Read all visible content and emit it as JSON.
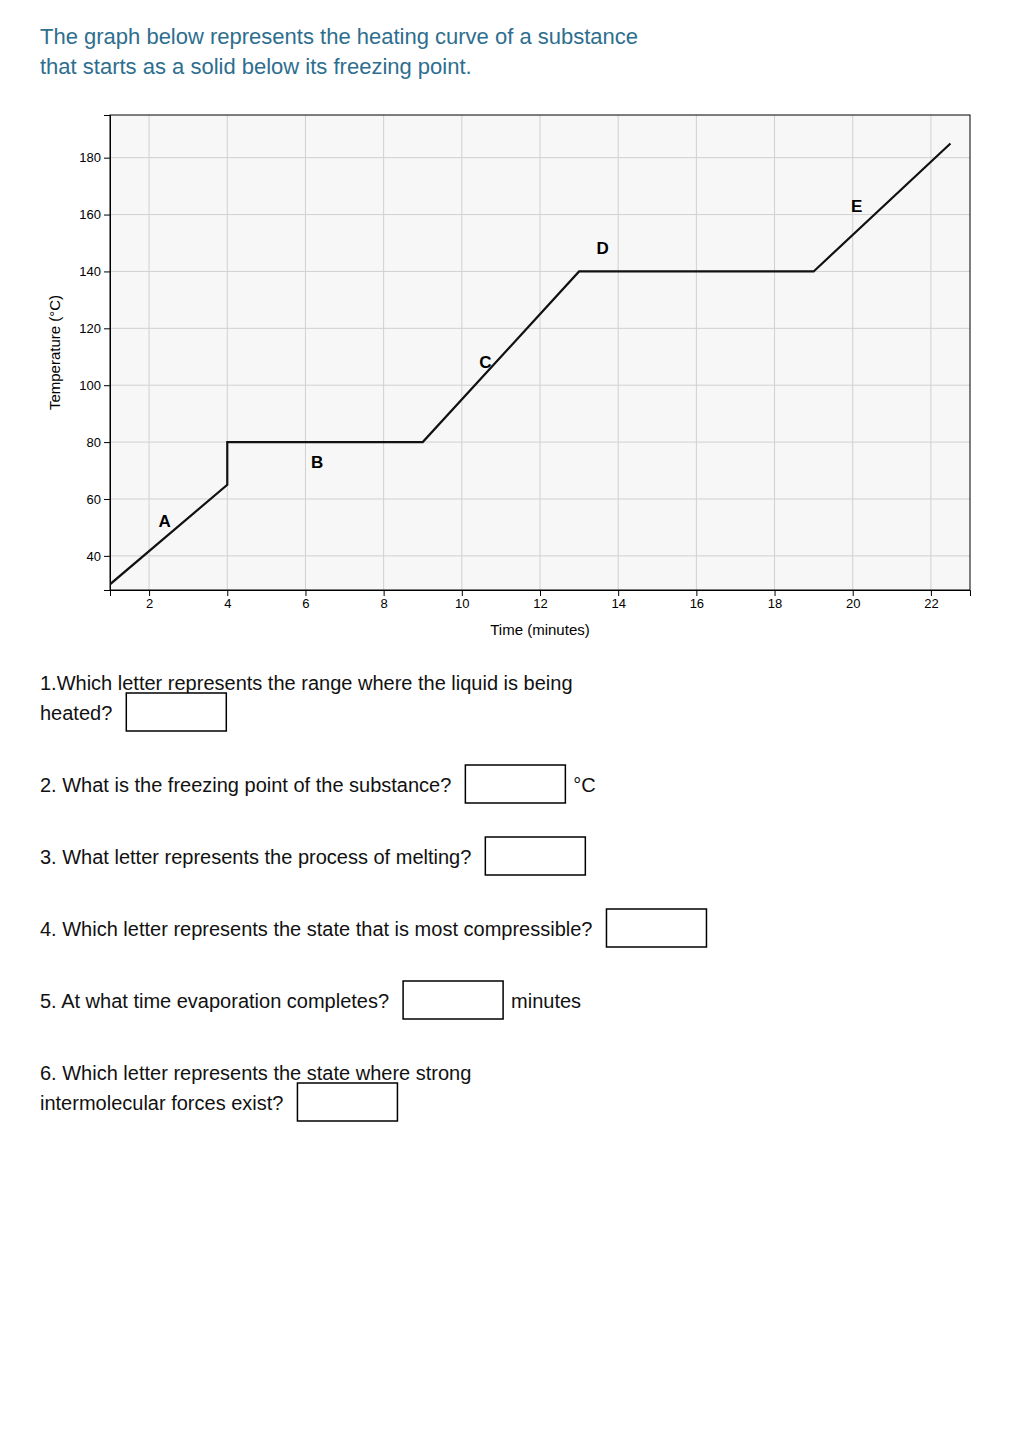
{
  "chart_data": {
    "type": "line",
    "title": "The graph below represents the heating curve of a substance\nthat starts as a solid below its freezing point.",
    "xlabel": "Time (minutes)",
    "ylabel": "Temperature (°C)",
    "x": [
      1,
      4,
      4,
      9,
      9,
      13,
      13,
      19,
      19,
      22.5
    ],
    "values": [
      30,
      65,
      80,
      80,
      80,
      140,
      140,
      140,
      140,
      185
    ],
    "color": "#111111",
    "xlim": [
      1,
      23
    ],
    "ylim": [
      28,
      195
    ],
    "xticks": [
      2,
      4,
      6,
      8,
      10,
      12,
      14,
      16,
      18,
      20,
      22
    ],
    "yticks": [
      40,
      60,
      80,
      100,
      120,
      140,
      160,
      180
    ],
    "grid": true,
    "annotations": [
      {
        "text": "A",
        "x": 2.4,
        "y": 52
      },
      {
        "text": "B",
        "x": 6.3,
        "y": 73
      },
      {
        "text": "C",
        "x": 10.6,
        "y": 108
      },
      {
        "text": "D",
        "x": 13.6,
        "y": 148
      },
      {
        "text": "E",
        "x": 20.1,
        "y": 163
      }
    ],
    "questions": [
      {
        "text": "1.Which letter represents the range where the liquid is being\nheated?"
      },
      {
        "text": "2. What is the freezing point of the substance?",
        "unit": "°C"
      },
      {
        "text": "3. What letter represents the process of melting?"
      },
      {
        "text": "4. Which letter represents the state that is most compressible?"
      },
      {
        "text": "5. At what time evaporation completes?",
        "unit": "minutes"
      },
      {
        "text": "6. Which letter represents the state where strong\nintermolecular forces exist?"
      }
    ]
  }
}
